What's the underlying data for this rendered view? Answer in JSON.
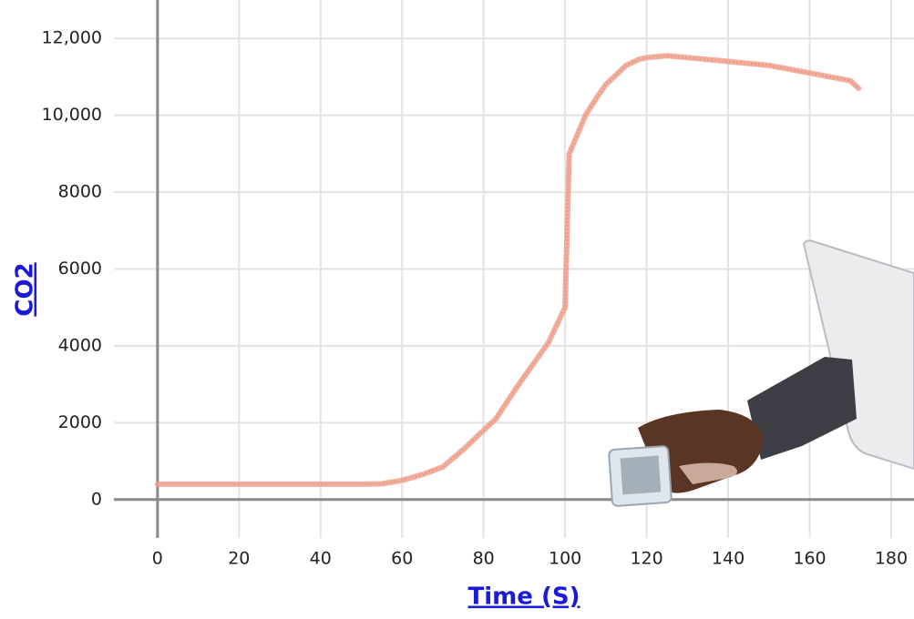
{
  "chart_data": {
    "type": "line",
    "x_label": "Time (S)",
    "y_label": "CO2",
    "x": [
      0,
      10,
      20,
      30,
      40,
      50,
      55,
      60,
      65,
      70,
      75,
      83,
      88,
      92,
      96,
      100,
      101,
      103,
      105,
      108,
      110,
      113,
      115,
      118,
      120,
      125,
      130,
      135,
      140,
      145,
      150,
      155,
      160,
      165,
      170,
      172
    ],
    "series": [
      {
        "name": "CO2",
        "color": "#f0a08c",
        "values": [
          400,
          400,
          400,
          400,
          400,
          400,
          410,
          500,
          650,
          850,
          1300,
          2100,
          2900,
          3500,
          4100,
          5000,
          9000,
          9500,
          10000,
          10500,
          10800,
          11100,
          11300,
          11450,
          11500,
          11550,
          11500,
          11450,
          11400,
          11350,
          11300,
          11200,
          11100,
          11000,
          10900,
          10700
        ]
      }
    ],
    "xlim": [
      -10.7,
      185.6
    ],
    "ylim": [
      -1000,
      13000
    ],
    "xticks": [
      0,
      20,
      40,
      60,
      80,
      100,
      120,
      140,
      160,
      180
    ],
    "yticks": [
      0,
      2000,
      4000,
      6000,
      8000,
      {
        "value": 10000,
        "label": "10,000"
      },
      {
        "value": 12000,
        "label": "12,000"
      }
    ],
    "grid": true
  }
}
